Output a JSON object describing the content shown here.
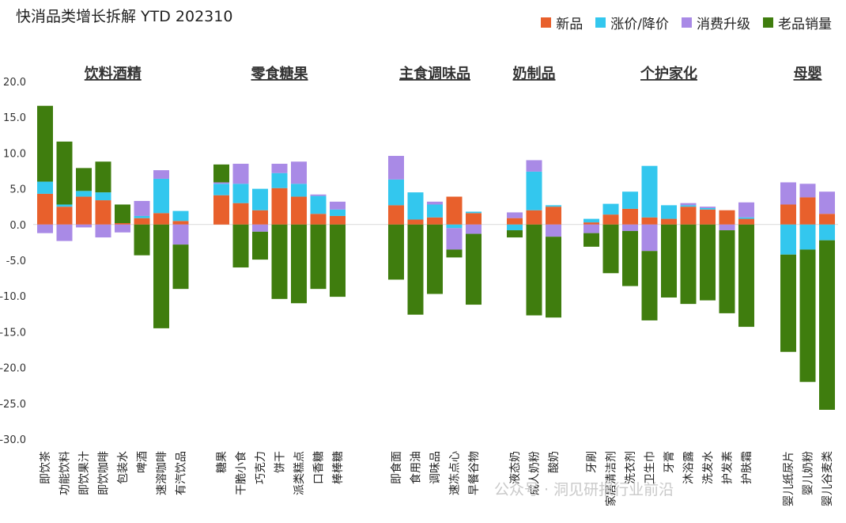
{
  "chart_data": {
    "type": "bar",
    "stacked": true,
    "title": "快消品类增长拆解 YTD 202310",
    "ylim": [
      -30,
      20
    ],
    "yticks": [
      "20.0",
      "15.0",
      "10.0",
      "5.0",
      "0.0",
      "-5.0",
      "-10.0",
      "-15.0",
      "-20.0",
      "-25.0",
      "-30.0"
    ],
    "series": [
      {
        "name": "新品",
        "color": "#e8602c"
      },
      {
        "name": "涨价/降价",
        "color": "#33c7ee"
      },
      {
        "name": "消费升级",
        "color": "#a98ae6"
      },
      {
        "name": "老品销量",
        "color": "#3f7d0e"
      }
    ],
    "groups": [
      {
        "name": "饮料酒精",
        "categories": [
          {
            "name": "即饮茶",
            "new": 4.3,
            "price": 1.7,
            "upgrade": -1.2,
            "volume": 10.6
          },
          {
            "name": "功能饮料",
            "new": 2.5,
            "price": 0.3,
            "upgrade": -2.3,
            "volume": 8.8
          },
          {
            "name": "即饮果汁",
            "new": 3.9,
            "price": 0.8,
            "upgrade": -0.4,
            "volume": 3.2
          },
          {
            "name": "即饮咖啡",
            "new": 3.4,
            "price": 1.1,
            "upgrade": -1.8,
            "volume": 4.3
          },
          {
            "name": "包装水",
            "new": 0.2,
            "price": 0,
            "upgrade": -1.1,
            "volume": 2.6
          },
          {
            "name": "啤酒",
            "new": 0.9,
            "price": 0.3,
            "upgrade": 2.1,
            "volume": -4.3
          },
          {
            "name": "速溶咖啡",
            "new": 1.6,
            "price": 4.8,
            "upgrade": 1.2,
            "volume": -14.5
          },
          {
            "name": "有汽饮品",
            "new": 0.5,
            "price": 1.4,
            "upgrade": -2.8,
            "volume": -6.2
          }
        ]
      },
      {
        "name": "零食糖果",
        "categories": [
          {
            "name": "糖果",
            "new": 4.1,
            "price": 1.6,
            "upgrade": 0.2,
            "volume": 2.5
          },
          {
            "name": "干脆小食",
            "new": 3.0,
            "price": 2.7,
            "upgrade": 2.8,
            "volume": -6.0
          },
          {
            "name": "巧克力",
            "new": 2.0,
            "price": 3.0,
            "upgrade": -1.0,
            "volume": -3.9
          },
          {
            "name": "饼干",
            "new": 5.1,
            "price": 2.1,
            "upgrade": 1.3,
            "volume": -10.4
          },
          {
            "name": "派类糕点",
            "new": 3.9,
            "price": 1.8,
            "upgrade": 3.1,
            "volume": -11.0
          },
          {
            "name": "口香糖",
            "new": 1.5,
            "price": 2.5,
            "upgrade": 0.2,
            "volume": -9.0
          },
          {
            "name": "棒棒糖",
            "new": 1.2,
            "price": 0.9,
            "upgrade": 1.1,
            "volume": -10.1
          }
        ]
      },
      {
        "name": "主食调味品",
        "categories": [
          {
            "name": "即食面",
            "new": 2.7,
            "price": 3.6,
            "upgrade": 3.3,
            "volume": -7.7
          },
          {
            "name": "食用油",
            "new": 0.7,
            "price": 3.8,
            "upgrade": 0,
            "volume": -12.6
          },
          {
            "name": "调味品",
            "new": 1.0,
            "price": 1.8,
            "upgrade": 0.4,
            "volume": -9.7
          },
          {
            "name": "速冻点心",
            "new": 3.9,
            "price": -0.5,
            "upgrade": -3.0,
            "volume": -1.1
          },
          {
            "name": "早餐谷物",
            "new": 1.6,
            "price": 0.2,
            "upgrade": -1.3,
            "volume": -9.9
          }
        ]
      },
      {
        "name": "奶制品",
        "categories": [
          {
            "name": "液态奶",
            "new": 0.9,
            "price": -0.8,
            "upgrade": 0.8,
            "volume": -1.0
          },
          {
            "name": "成人奶粉",
            "new": 2.0,
            "price": 5.4,
            "upgrade": 1.6,
            "volume": -12.7
          },
          {
            "name": "酸奶",
            "new": 2.5,
            "price": 0.2,
            "upgrade": -1.7,
            "volume": -11.3
          }
        ]
      },
      {
        "name": "个护家化",
        "categories": [
          {
            "name": "牙刷",
            "new": 0.3,
            "price": 0.5,
            "upgrade": -1.2,
            "volume": -1.9
          },
          {
            "name": "家居清洁剂",
            "new": 1.4,
            "price": 1.5,
            "upgrade": 0,
            "volume": -6.8
          },
          {
            "name": "洗衣剂",
            "new": 2.2,
            "price": 2.4,
            "upgrade": -0.9,
            "volume": -7.7
          },
          {
            "name": "卫生巾",
            "new": 1.0,
            "price": 7.2,
            "upgrade": -3.7,
            "volume": -9.7
          },
          {
            "name": "牙膏",
            "new": 0.8,
            "price": 1.9,
            "upgrade": 0,
            "volume": -10.2
          },
          {
            "name": "沐浴露",
            "new": 2.5,
            "price": 0.2,
            "upgrade": 0.3,
            "volume": -11.1
          },
          {
            "name": "洗发水",
            "new": 2.1,
            "price": 0.2,
            "upgrade": 0.2,
            "volume": -10.6
          },
          {
            "name": "护发素",
            "new": 2.0,
            "price": 0,
            "upgrade": -0.8,
            "volume": -11.6
          },
          {
            "name": "护肤霜",
            "new": 0.8,
            "price": 0.2,
            "upgrade": 2.1,
            "volume": -14.3
          }
        ]
      },
      {
        "name": "母婴",
        "categories": [
          {
            "name": "婴儿纸尿片",
            "new": 2.8,
            "price": -4.2,
            "upgrade": 3.1,
            "volume": -13.6
          },
          {
            "name": "婴儿奶粉",
            "new": 3.8,
            "price": -3.5,
            "upgrade": 1.9,
            "volume": -18.5
          },
          {
            "name": "婴儿谷麦类",
            "new": 1.5,
            "price": -2.2,
            "upgrade": 3.1,
            "volume": -23.7
          }
        ]
      }
    ]
  },
  "watermark": "公众号 · 洞见研报行业前沿"
}
